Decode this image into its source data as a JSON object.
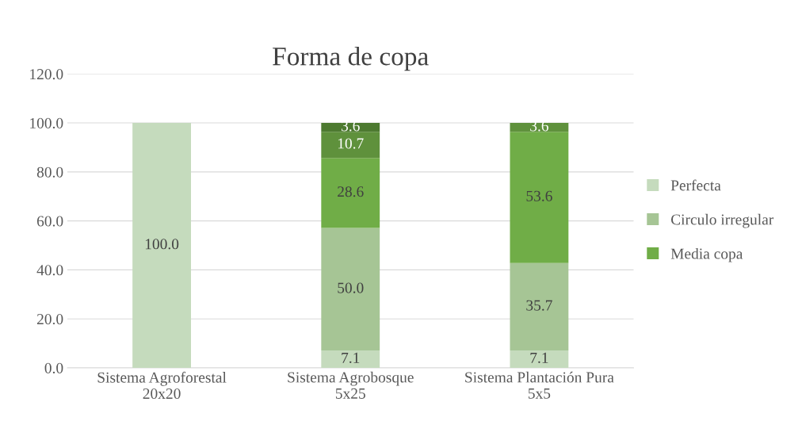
{
  "chart_data": {
    "type": "bar",
    "stacked": true,
    "title": "Forma de copa",
    "categories": [
      "Sistema Agroforestal\n20x20",
      "Sistema Agrobosque\n5x25",
      "Sistema Plantación Pura\n5x5"
    ],
    "series": [
      {
        "name": "Perfecta",
        "color": "#c5dbbd",
        "values": [
          100.0,
          7.1,
          7.1
        ],
        "value_labels": [
          "100.0",
          "7.1",
          "7.1"
        ]
      },
      {
        "name": "Circulo irregular",
        "color": "#a6c595",
        "values": [
          null,
          50.0,
          35.7
        ],
        "value_labels": [
          null,
          "50.0",
          "35.7"
        ]
      },
      {
        "name": "Media copa",
        "color": "#70ad47",
        "values": [
          null,
          28.6,
          53.6
        ],
        "value_labels": [
          null,
          "28.6",
          "53.6"
        ]
      },
      {
        "color": "#5f913c",
        "values": [
          null,
          10.7,
          3.6
        ],
        "value_labels": [
          null,
          "10.7",
          "3.6"
        ]
      },
      {
        "color": "#4d7a30",
        "values": [
          null,
          3.6,
          null
        ],
        "value_labels": [
          null,
          "3.6",
          null
        ]
      }
    ],
    "ylim": [
      0,
      120
    ],
    "yticks": [
      {
        "value": 0,
        "label": "0.0"
      },
      {
        "value": 20,
        "label": "20.0"
      },
      {
        "value": 40,
        "label": "40.0"
      },
      {
        "value": 60,
        "label": "60.0"
      },
      {
        "value": 80,
        "label": "80.0"
      },
      {
        "value": 100,
        "label": "100.0"
      },
      {
        "value": 120,
        "label": "120.0"
      }
    ],
    "grid": "y",
    "legend": "right"
  }
}
